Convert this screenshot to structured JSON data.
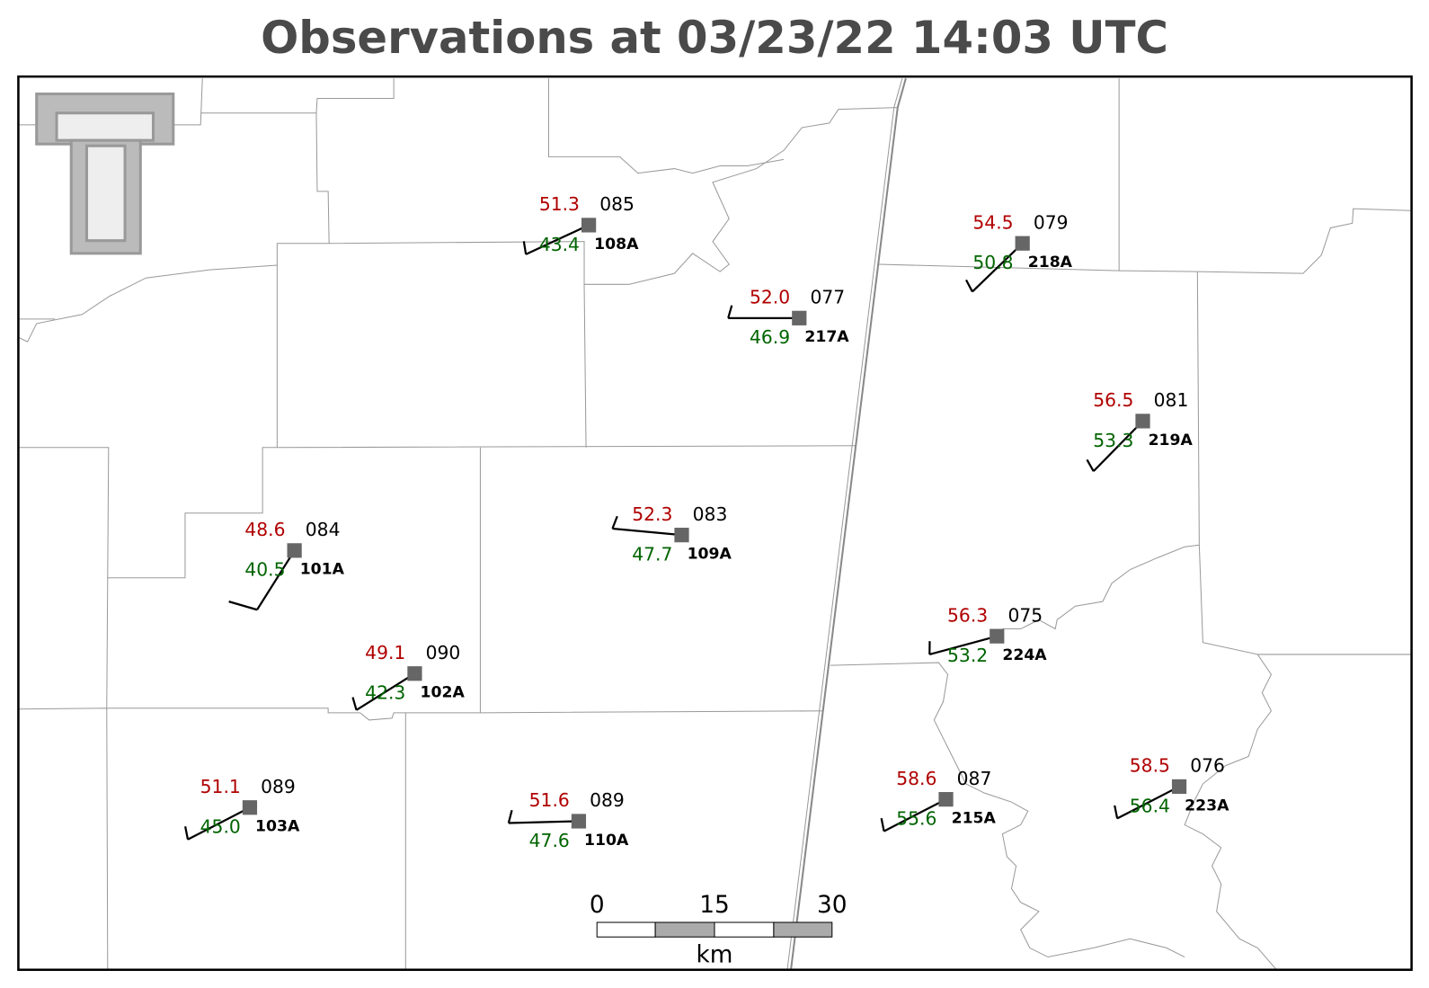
{
  "header": {
    "title": "Observations at 03/23/22 14:03 UTC"
  },
  "stations": [
    {
      "id": "108A",
      "temperature": "51.3",
      "dewpoint": "43.4",
      "pressure": "085"
    },
    {
      "id": "217A",
      "temperature": "52.0",
      "dewpoint": "46.9",
      "pressure": "077"
    },
    {
      "id": "218A",
      "temperature": "54.5",
      "dewpoint": "50.8",
      "pressure": "079"
    },
    {
      "id": "219A",
      "temperature": "56.5",
      "dewpoint": "53.3",
      "pressure": "081"
    },
    {
      "id": "101A",
      "temperature": "48.6",
      "dewpoint": "40.5",
      "pressure": "084"
    },
    {
      "id": "109A",
      "temperature": "52.3",
      "dewpoint": "47.7",
      "pressure": "083"
    },
    {
      "id": "102A",
      "temperature": "49.1",
      "dewpoint": "42.3",
      "pressure": "090"
    },
    {
      "id": "224A",
      "temperature": "56.3",
      "dewpoint": "53.2",
      "pressure": "075"
    },
    {
      "id": "103A",
      "temperature": "51.1",
      "dewpoint": "45.0",
      "pressure": "089"
    },
    {
      "id": "110A",
      "temperature": "51.6",
      "dewpoint": "47.6",
      "pressure": "089"
    },
    {
      "id": "215A",
      "temperature": "58.6",
      "dewpoint": "55.6",
      "pressure": "087"
    },
    {
      "id": "223A",
      "temperature": "58.5",
      "dewpoint": "56.4",
      "pressure": "076"
    }
  ],
  "scale_bar": {
    "labels": [
      "0",
      "15",
      "30"
    ],
    "unit": "km"
  }
}
